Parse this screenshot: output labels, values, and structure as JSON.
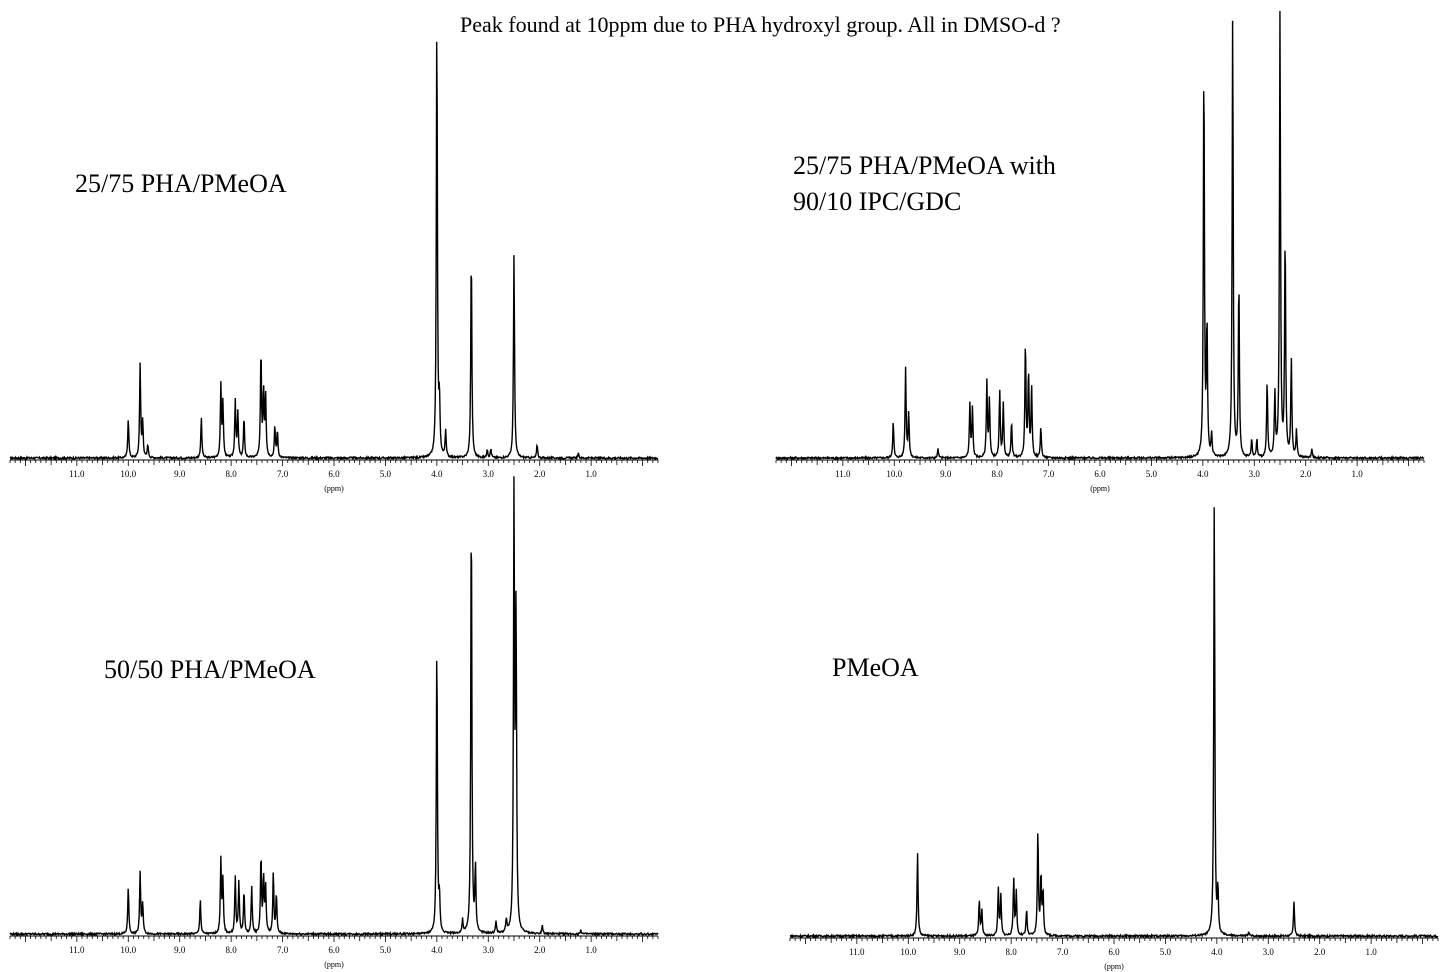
{
  "note": "Peak found at 10ppm due to PHA hydroxyl group.   All in DMSO-d ?",
  "chart_data": [
    {
      "type": "line",
      "title": "25/75 PHA/PMeOA",
      "xlabel": "(ppm)",
      "xlim": [
        12.3,
        -0.3
      ],
      "reversed_x": true,
      "tick_labels": [
        "11.0",
        "10.0",
        "9.0",
        "8.0",
        "7.0",
        "6.0",
        "5.0",
        "4.0",
        "3.0",
        "2.0",
        "1.0"
      ],
      "peaks": [
        {
          "ppm": 10.0,
          "height": 0.09
        },
        {
          "ppm": 9.77,
          "height": 0.21
        },
        {
          "ppm": 9.72,
          "height": 0.08
        },
        {
          "ppm": 9.62,
          "height": 0.03
        },
        {
          "ppm": 8.58,
          "height": 0.09
        },
        {
          "ppm": 8.2,
          "height": 0.16
        },
        {
          "ppm": 8.16,
          "height": 0.12
        },
        {
          "ppm": 7.92,
          "height": 0.13
        },
        {
          "ppm": 7.87,
          "height": 0.1
        },
        {
          "ppm": 7.75,
          "height": 0.09
        },
        {
          "ppm": 7.42,
          "height": 0.24
        },
        {
          "ppm": 7.37,
          "height": 0.15
        },
        {
          "ppm": 7.33,
          "height": 0.14
        },
        {
          "ppm": 7.15,
          "height": 0.07
        },
        {
          "ppm": 7.1,
          "height": 0.06
        },
        {
          "ppm": 4.0,
          "height": 1.0
        },
        {
          "ppm": 3.95,
          "height": 0.12
        },
        {
          "ppm": 3.83,
          "height": 0.06
        },
        {
          "ppm": 3.33,
          "height": 0.47
        },
        {
          "ppm": 3.02,
          "height": 0.02
        },
        {
          "ppm": 2.95,
          "height": 0.02
        },
        {
          "ppm": 2.5,
          "height": 0.46
        },
        {
          "ppm": 2.05,
          "height": 0.03
        },
        {
          "ppm": 1.25,
          "height": 0.01
        }
      ]
    },
    {
      "type": "line",
      "title": "25/75 PHA/PMeOA with\n90/10 IPC/GDC",
      "xlabel": "(ppm)",
      "xlim": [
        12.3,
        -0.3
      ],
      "reversed_x": true,
      "tick_labels": [
        "11.0",
        "10.0",
        "9.0",
        "8.0",
        "7.0",
        "6.0",
        "5.0",
        "4.0",
        "3.0",
        "2.0",
        "1.0"
      ],
      "peaks": [
        {
          "ppm": 10.02,
          "height": 0.08
        },
        {
          "ppm": 9.78,
          "height": 0.2
        },
        {
          "ppm": 9.72,
          "height": 0.1
        },
        {
          "ppm": 9.15,
          "height": 0.02
        },
        {
          "ppm": 8.53,
          "height": 0.12
        },
        {
          "ppm": 8.48,
          "height": 0.11
        },
        {
          "ppm": 8.2,
          "height": 0.17
        },
        {
          "ppm": 8.15,
          "height": 0.13
        },
        {
          "ppm": 7.95,
          "height": 0.15
        },
        {
          "ppm": 7.88,
          "height": 0.12
        },
        {
          "ppm": 7.72,
          "height": 0.08
        },
        {
          "ppm": 7.45,
          "height": 0.26
        },
        {
          "ppm": 7.39,
          "height": 0.19
        },
        {
          "ppm": 7.33,
          "height": 0.16
        },
        {
          "ppm": 7.15,
          "height": 0.07
        },
        {
          "ppm": 3.98,
          "height": 0.9
        },
        {
          "ppm": 3.92,
          "height": 0.3
        },
        {
          "ppm": 3.83,
          "height": 0.05
        },
        {
          "ppm": 3.42,
          "height": 1.0
        },
        {
          "ppm": 3.3,
          "height": 0.4
        },
        {
          "ppm": 3.05,
          "height": 0.04
        },
        {
          "ppm": 2.95,
          "height": 0.04
        },
        {
          "ppm": 2.75,
          "height": 0.17
        },
        {
          "ppm": 2.6,
          "height": 0.14
        },
        {
          "ppm": 2.5,
          "height": 1.0
        },
        {
          "ppm": 2.4,
          "height": 0.5
        },
        {
          "ppm": 2.28,
          "height": 0.22
        },
        {
          "ppm": 2.18,
          "height": 0.06
        },
        {
          "ppm": 1.88,
          "height": 0.02
        }
      ]
    },
    {
      "type": "line",
      "title": "50/50 PHA/PMeOA",
      "xlabel": "(ppm)",
      "xlim": [
        12.3,
        -0.3
      ],
      "reversed_x": true,
      "tick_labels": [
        "11.0",
        "10.0",
        "9.0",
        "8.0",
        "7.0",
        "6.0",
        "5.0",
        "4.0",
        "3.0",
        "2.0",
        "1.0"
      ],
      "peaks": [
        {
          "ppm": 10.0,
          "height": 0.11
        },
        {
          "ppm": 9.77,
          "height": 0.14
        },
        {
          "ppm": 9.72,
          "height": 0.07
        },
        {
          "ppm": 8.6,
          "height": 0.08
        },
        {
          "ppm": 8.2,
          "height": 0.17
        },
        {
          "ppm": 8.16,
          "height": 0.12
        },
        {
          "ppm": 7.92,
          "height": 0.13
        },
        {
          "ppm": 7.85,
          "height": 0.12
        },
        {
          "ppm": 7.75,
          "height": 0.1
        },
        {
          "ppm": 7.6,
          "height": 0.11
        },
        {
          "ppm": 7.42,
          "height": 0.18
        },
        {
          "ppm": 7.37,
          "height": 0.13
        },
        {
          "ppm": 7.33,
          "height": 0.11
        },
        {
          "ppm": 7.18,
          "height": 0.14
        },
        {
          "ppm": 7.12,
          "height": 0.09
        },
        {
          "ppm": 4.0,
          "height": 0.67
        },
        {
          "ppm": 3.95,
          "height": 0.08
        },
        {
          "ppm": 3.5,
          "height": 0.03
        },
        {
          "ppm": 3.33,
          "height": 1.0
        },
        {
          "ppm": 3.25,
          "height": 0.15
        },
        {
          "ppm": 2.85,
          "height": 0.03
        },
        {
          "ppm": 2.65,
          "height": 0.03
        },
        {
          "ppm": 2.5,
          "height": 1.0
        },
        {
          "ppm": 2.46,
          "height": 0.72
        },
        {
          "ppm": 1.95,
          "height": 0.02
        },
        {
          "ppm": 1.2,
          "height": 0.01
        }
      ]
    },
    {
      "type": "line",
      "title": "PMeOA",
      "xlabel": "(ppm)",
      "xlim": [
        12.3,
        -0.3
      ],
      "reversed_x": true,
      "tick_labels": [
        "11.0",
        "10.0",
        "9.0",
        "8.0",
        "7.0",
        "6.0",
        "5.0",
        "4.0",
        "3.0",
        "2.0",
        "1.0"
      ],
      "peaks": [
        {
          "ppm": 9.82,
          "height": 0.19
        },
        {
          "ppm": 8.62,
          "height": 0.08
        },
        {
          "ppm": 8.57,
          "height": 0.06
        },
        {
          "ppm": 8.25,
          "height": 0.11
        },
        {
          "ppm": 8.2,
          "height": 0.09
        },
        {
          "ppm": 7.95,
          "height": 0.13
        },
        {
          "ppm": 7.9,
          "height": 0.1
        },
        {
          "ppm": 7.7,
          "height": 0.06
        },
        {
          "ppm": 7.48,
          "height": 0.24
        },
        {
          "ppm": 7.42,
          "height": 0.14
        },
        {
          "ppm": 7.38,
          "height": 0.1
        },
        {
          "ppm": 4.05,
          "height": 1.0
        },
        {
          "ppm": 3.98,
          "height": 0.1
        },
        {
          "ppm": 3.38,
          "height": 0.01
        },
        {
          "ppm": 2.5,
          "height": 0.08
        }
      ]
    }
  ]
}
